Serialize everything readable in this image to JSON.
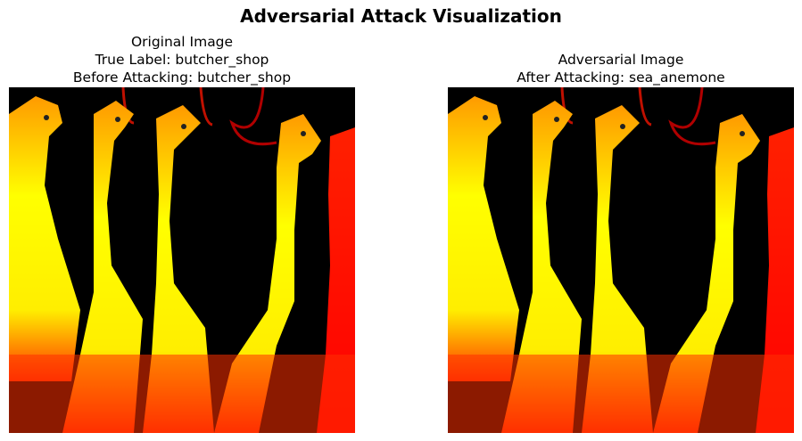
{
  "figure": {
    "title": "Adversarial Attack Visualization"
  },
  "panels": [
    {
      "lines": [
        "Original Image",
        "True Label: butcher_shop",
        "Before Attacking: butcher_shop"
      ],
      "image": "butcher_shop chickens (heatmap-colored)"
    },
    {
      "lines": [
        "Adversarial Image",
        "After Attacking: sea_anemone"
      ],
      "image": "adversarial butcher_shop chickens (heatmap-colored)"
    }
  ],
  "colors": {
    "background": "#000000",
    "hot_yellow": "#ffff00",
    "hot_orange": "#ff8800",
    "hot_red": "#ff1a00"
  }
}
